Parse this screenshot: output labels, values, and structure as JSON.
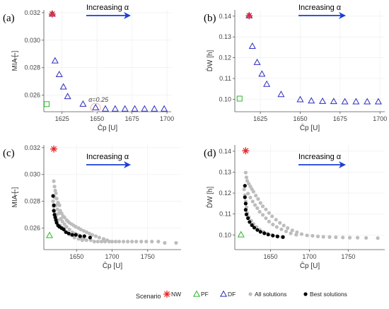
{
  "legend": {
    "title": "Scenario",
    "items": [
      {
        "marker": "star",
        "color": "#e8262b",
        "label": "NW"
      },
      {
        "marker": "triangle-up",
        "color": "#2ab52a",
        "label": "PF"
      },
      {
        "marker": "triangle-up",
        "color": "#2d2dbe",
        "label": "DF"
      },
      {
        "marker": "circle",
        "color": "#bdbdbd",
        "label": "All solutions"
      },
      {
        "marker": "circle",
        "color": "#000000",
        "label": "Best solutions"
      }
    ]
  },
  "colors": {
    "NW": "#e8262b",
    "PF": "#2ab52a",
    "DF": "#2d2dbe",
    "all": "#bdbdbd",
    "best": "#000000",
    "arrow": "#1a3ed6"
  },
  "chart_data": [
    {
      "type": "scatter",
      "panel": "(a)",
      "annotation": "Increasing α",
      "xlabel": "C̄p [U]",
      "ylabel": "MIA [-]",
      "xlim": [
        1612,
        1703
      ],
      "ylim": [
        0.0248,
        0.0322
      ],
      "xticks": [
        1625,
        1650,
        1675,
        1700
      ],
      "yticks": [
        0.026,
        0.028,
        0.03,
        0.032
      ],
      "ytick_labels": [
        "0.026",
        "0.028",
        "0.030",
        "0.032"
      ],
      "point_label": {
        "text": "α=0.25",
        "x": 1649,
        "y": 0.0251
      },
      "series": [
        {
          "name": "NW",
          "marker": "star",
          "points": [
            [
              1618,
              0.0319
            ]
          ]
        },
        {
          "name": "PF",
          "marker": "square",
          "points": [
            [
              1614,
              0.02535
            ]
          ]
        },
        {
          "name": "DF",
          "marker": "triangle",
          "points": [
            [
              1618,
              0.0319
            ],
            [
              1620,
              0.0285
            ],
            [
              1623,
              0.0275
            ],
            [
              1626,
              0.0266
            ],
            [
              1629,
              0.0259
            ],
            [
              1640,
              0.02535
            ],
            [
              1649,
              0.0251
            ],
            [
              1656,
              0.025
            ],
            [
              1663,
              0.025
            ],
            [
              1670,
              0.025
            ],
            [
              1677,
              0.025
            ],
            [
              1684,
              0.025
            ],
            [
              1691,
              0.025
            ],
            [
              1698,
              0.025
            ]
          ]
        }
      ]
    },
    {
      "type": "scatter",
      "panel": "(b)",
      "annotation": "Increasing α",
      "xlabel": "C̄p [U]",
      "ylabel": "D̄W [h]",
      "xlim": [
        1609,
        1703
      ],
      "ylim": [
        0.094,
        0.143
      ],
      "xticks": [
        1625,
        1650,
        1675,
        1700
      ],
      "yticks": [
        0.1,
        0.11,
        0.12,
        0.13,
        0.14
      ],
      "ytick_labels": [
        "0.10",
        "0.11",
        "0.12",
        "0.13",
        "0.14"
      ],
      "series": [
        {
          "name": "NW",
          "marker": "star",
          "points": [
            [
              1618,
              0.1402
            ]
          ]
        },
        {
          "name": "PF",
          "marker": "square",
          "points": [
            [
              1612,
              0.1003
            ]
          ]
        },
        {
          "name": "DF",
          "marker": "triangle",
          "points": [
            [
              1618,
              0.1402
            ],
            [
              1620,
              0.1255
            ],
            [
              1623,
              0.1177
            ],
            [
              1626,
              0.1121
            ],
            [
              1629,
              0.1072
            ],
            [
              1638,
              0.1023
            ],
            [
              1650,
              0.0998
            ],
            [
              1657,
              0.0992
            ],
            [
              1664,
              0.099
            ],
            [
              1671,
              0.0989
            ],
            [
              1678,
              0.0988
            ],
            [
              1685,
              0.0988
            ],
            [
              1692,
              0.0988
            ],
            [
              1699,
              0.0988
            ]
          ]
        }
      ]
    },
    {
      "type": "scatter",
      "panel": "(c)",
      "annotation": "Increasing α",
      "xlabel": "C̄p [U]",
      "ylabel": "MIA [-]",
      "xlim": [
        1604,
        1797
      ],
      "ylim": [
        0.0244,
        0.0322
      ],
      "xticks": [
        1650,
        1700,
        1750
      ],
      "yticks": [
        0.026,
        0.028,
        0.03,
        0.032
      ],
      "ytick_labels": [
        "0.026",
        "0.028",
        "0.030",
        "0.032"
      ],
      "series": [
        {
          "name": "NW",
          "marker": "star",
          "points": [
            [
              1618,
              0.0319
            ]
          ]
        },
        {
          "name": "PF",
          "marker": "triangle",
          "points": [
            [
              1612,
              0.02545
            ]
          ]
        },
        {
          "name": "All solutions",
          "marker": "circle",
          "points": [
            [
              1618,
              0.0295
            ],
            [
              1619,
              0.0291
            ],
            [
              1620,
              0.0288
            ],
            [
              1621,
              0.0286
            ],
            [
              1619,
              0.0283
            ],
            [
              1622,
              0.0282
            ],
            [
              1624,
              0.0279
            ],
            [
              1621,
              0.0277
            ],
            [
              1626,
              0.0277
            ],
            [
              1623,
              0.0274
            ],
            [
              1627,
              0.0273
            ],
            [
              1629,
              0.0271
            ],
            [
              1625,
              0.0271
            ],
            [
              1622,
              0.027
            ],
            [
              1631,
              0.0269
            ],
            [
              1633,
              0.0268
            ],
            [
              1628,
              0.0267
            ],
            [
              1636,
              0.0266
            ],
            [
              1638,
              0.0265
            ],
            [
              1630,
              0.0265
            ],
            [
              1640,
              0.0264
            ],
            [
              1643,
              0.0263
            ],
            [
              1633,
              0.0263
            ],
            [
              1646,
              0.0262
            ],
            [
              1636,
              0.0261
            ],
            [
              1649,
              0.0261
            ],
            [
              1653,
              0.026
            ],
            [
              1640,
              0.0259
            ],
            [
              1656,
              0.0259
            ],
            [
              1660,
              0.0258
            ],
            [
              1644,
              0.0257
            ],
            [
              1664,
              0.0257
            ],
            [
              1668,
              0.0256
            ],
            [
              1648,
              0.0256
            ],
            [
              1672,
              0.0255
            ],
            [
              1652,
              0.0255
            ],
            [
              1677,
              0.0254
            ],
            [
              1656,
              0.0253
            ],
            [
              1682,
              0.0253
            ],
            [
              1660,
              0.0252
            ],
            [
              1688,
              0.0252
            ],
            [
              1664,
              0.0251
            ],
            [
              1693,
              0.0251
            ],
            [
              1670,
              0.0251
            ],
            [
              1675,
              0.025
            ],
            [
              1680,
              0.025
            ],
            [
              1685,
              0.025
            ],
            [
              1690,
              0.025
            ],
            [
              1696,
              0.025
            ],
            [
              1700,
              0.025
            ],
            [
              1705,
              0.025
            ],
            [
              1710,
              0.025
            ],
            [
              1716,
              0.025
            ],
            [
              1722,
              0.025
            ],
            [
              1728,
              0.025
            ],
            [
              1734,
              0.025
            ],
            [
              1741,
              0.025
            ],
            [
              1748,
              0.025
            ],
            [
              1756,
              0.025
            ],
            [
              1765,
              0.025
            ],
            [
              1774,
              0.0249
            ],
            [
              1790,
              0.0249
            ],
            [
              1617,
              0.028
            ],
            [
              1618,
              0.0276
            ],
            [
              1619,
              0.0272
            ],
            [
              1620,
              0.0268
            ],
            [
              1624,
              0.0266
            ],
            [
              1627,
              0.0262
            ],
            [
              1632,
              0.026
            ],
            [
              1636,
              0.0257
            ],
            [
              1642,
              0.0255
            ],
            [
              1647,
              0.0253
            ],
            [
              1653,
              0.0252
            ],
            [
              1658,
              0.0251
            ]
          ]
        },
        {
          "name": "Best solutions",
          "marker": "circle",
          "points": [
            [
              1617,
              0.0284
            ],
            [
              1618,
              0.0277
            ],
            [
              1618,
              0.0273
            ],
            [
              1619,
              0.027
            ],
            [
              1620,
              0.0268
            ],
            [
              1621,
              0.0266
            ],
            [
              1622,
              0.0264
            ],
            [
              1624,
              0.0262
            ],
            [
              1626,
              0.0261
            ],
            [
              1629,
              0.026
            ],
            [
              1632,
              0.0259
            ],
            [
              1635,
              0.0257
            ],
            [
              1639,
              0.0256
            ],
            [
              1644,
              0.0255
            ],
            [
              1649,
              0.0255
            ],
            [
              1655,
              0.0254
            ],
            [
              1661,
              0.0254
            ],
            [
              1669,
              0.0253
            ]
          ]
        }
      ]
    },
    {
      "type": "scatter",
      "panel": "(d)",
      "annotation": "Increasing α",
      "xlabel": "C̄p [U]",
      "ylabel": "D̄W [h]",
      "xlim": [
        1604,
        1797
      ],
      "ylim": [
        0.093,
        0.143
      ],
      "xticks": [
        1650,
        1700,
        1750
      ],
      "yticks": [
        0.1,
        0.11,
        0.12,
        0.13,
        0.14
      ],
      "ytick_labels": [
        "0.10",
        "0.11",
        "0.12",
        "0.13",
        "0.14"
      ],
      "series": [
        {
          "name": "NW",
          "marker": "star",
          "points": [
            [
              1618,
              0.1402
            ]
          ]
        },
        {
          "name": "PF",
          "marker": "triangle",
          "points": [
            [
              1612,
              0.1001
            ]
          ]
        },
        {
          "name": "All solutions",
          "marker": "circle",
          "points": [
            [
              1618,
              0.1298
            ],
            [
              1619,
              0.1275
            ],
            [
              1620,
              0.1258
            ],
            [
              1622,
              0.1245
            ],
            [
              1624,
              0.1232
            ],
            [
              1626,
              0.1219
            ],
            [
              1628,
              0.1207
            ],
            [
              1621,
              0.1198
            ],
            [
              1631,
              0.1188
            ],
            [
              1624,
              0.1179
            ],
            [
              1634,
              0.1172
            ],
            [
              1627,
              0.116
            ],
            [
              1637,
              0.1153
            ],
            [
              1630,
              0.1143
            ],
            [
              1640,
              0.1137
            ],
            [
              1633,
              0.1128
            ],
            [
              1644,
              0.1122
            ],
            [
              1636,
              0.1111
            ],
            [
              1648,
              0.1105
            ],
            [
              1640,
              0.1096
            ],
            [
              1652,
              0.1089
            ],
            [
              1644,
              0.108
            ],
            [
              1657,
              0.1073
            ],
            [
              1648,
              0.1064
            ],
            [
              1662,
              0.1058
            ],
            [
              1653,
              0.105
            ],
            [
              1667,
              0.1045
            ],
            [
              1658,
              0.1038
            ],
            [
              1672,
              0.1033
            ],
            [
              1664,
              0.1027
            ],
            [
              1678,
              0.1022
            ],
            [
              1670,
              0.1017
            ],
            [
              1684,
              0.1013
            ],
            [
              1676,
              0.1008
            ],
            [
              1690,
              0.1004
            ],
            [
              1683,
              0.1001
            ],
            [
              1697,
              0.0998
            ],
            [
              1704,
              0.0996
            ],
            [
              1711,
              0.0993
            ],
            [
              1718,
              0.0991
            ],
            [
              1726,
              0.099
            ],
            [
              1734,
              0.0989
            ],
            [
              1743,
              0.0988
            ],
            [
              1752,
              0.0987
            ],
            [
              1762,
              0.0987
            ],
            [
              1773,
              0.0986
            ],
            [
              1788,
              0.0985
            ],
            [
              1616,
              0.1218
            ],
            [
              1617,
              0.119
            ],
            [
              1618,
              0.116
            ],
            [
              1619,
              0.1132
            ],
            [
              1620,
              0.1105
            ],
            [
              1622,
              0.1085
            ],
            [
              1625,
              0.1068
            ],
            [
              1628,
              0.1052
            ],
            [
              1632,
              0.1038
            ],
            [
              1636,
              0.1025
            ],
            [
              1641,
              0.1015
            ],
            [
              1646,
              0.1007
            ],
            [
              1652,
              0.1
            ],
            [
              1658,
              0.0994
            ],
            [
              1665,
              0.099
            ]
          ]
        },
        {
          "name": "Best solutions",
          "marker": "circle",
          "points": [
            [
              1617,
              0.1235
            ],
            [
              1617,
              0.118
            ],
            [
              1618,
              0.115
            ],
            [
              1618,
              0.112
            ],
            [
              1619,
              0.1098
            ],
            [
              1621,
              0.108
            ],
            [
              1623,
              0.1062
            ],
            [
              1626,
              0.1047
            ],
            [
              1629,
              0.1035
            ],
            [
              1633,
              0.1024
            ],
            [
              1637,
              0.1015
            ],
            [
              1642,
              0.1008
            ],
            [
              1647,
              0.1002
            ],
            [
              1653,
              0.0997
            ],
            [
              1659,
              0.0993
            ],
            [
              1666,
              0.099
            ]
          ]
        }
      ]
    }
  ]
}
